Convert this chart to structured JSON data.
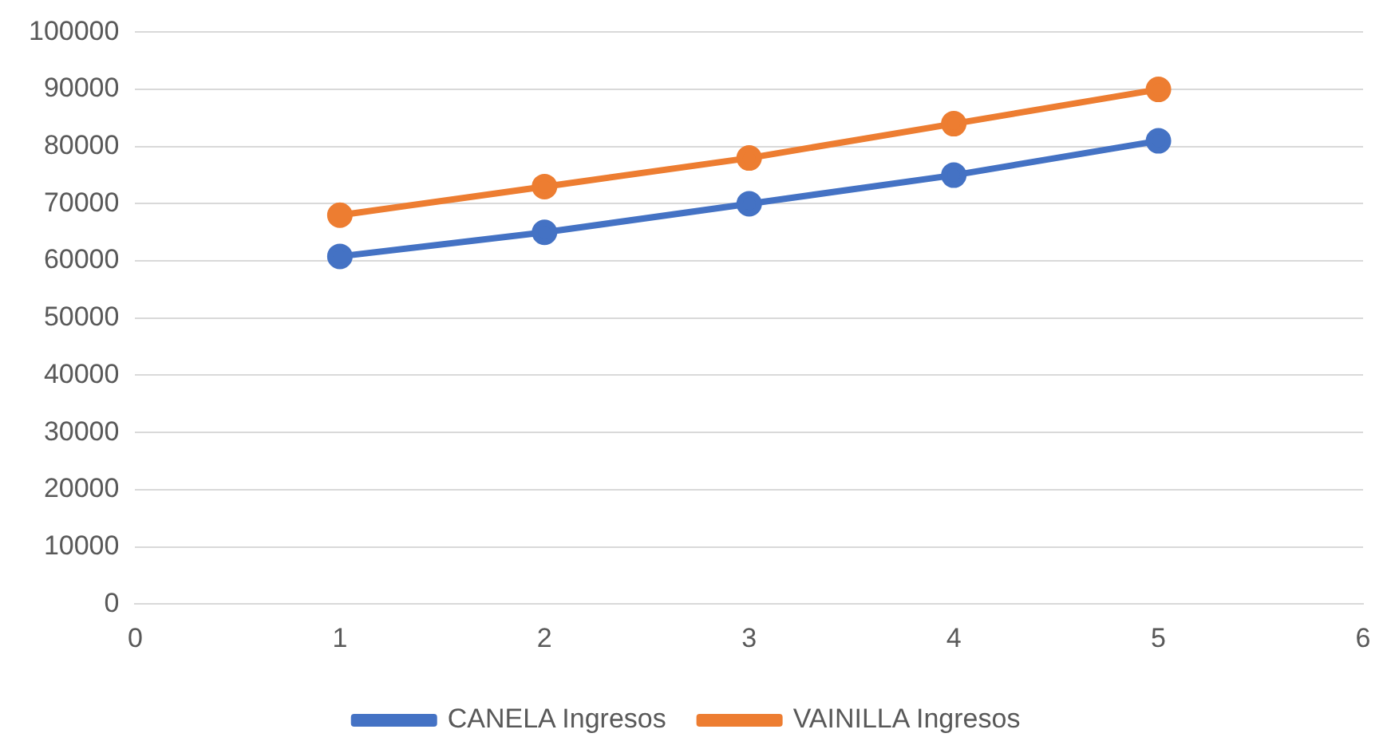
{
  "chart_data": {
    "type": "line",
    "x": [
      1,
      2,
      3,
      4,
      5
    ],
    "series": [
      {
        "name": "CANELA Ingresos",
        "color": "#4472c4",
        "values": [
          60800,
          65000,
          70000,
          75000,
          81000
        ]
      },
      {
        "name": "VAINILLA Ingresos",
        "color": "#ed7d31",
        "values": [
          68000,
          73000,
          78000,
          84000,
          90000
        ]
      }
    ],
    "xlim": [
      0,
      6
    ],
    "xticks": [
      0,
      1,
      2,
      3,
      4,
      5,
      6
    ],
    "ylim": [
      0,
      100000
    ],
    "yticks": [
      0,
      10000,
      20000,
      30000,
      40000,
      50000,
      60000,
      70000,
      80000,
      90000,
      100000
    ],
    "grid": "y",
    "legend": "bottom",
    "marker": "circle",
    "line_style": "solid"
  }
}
